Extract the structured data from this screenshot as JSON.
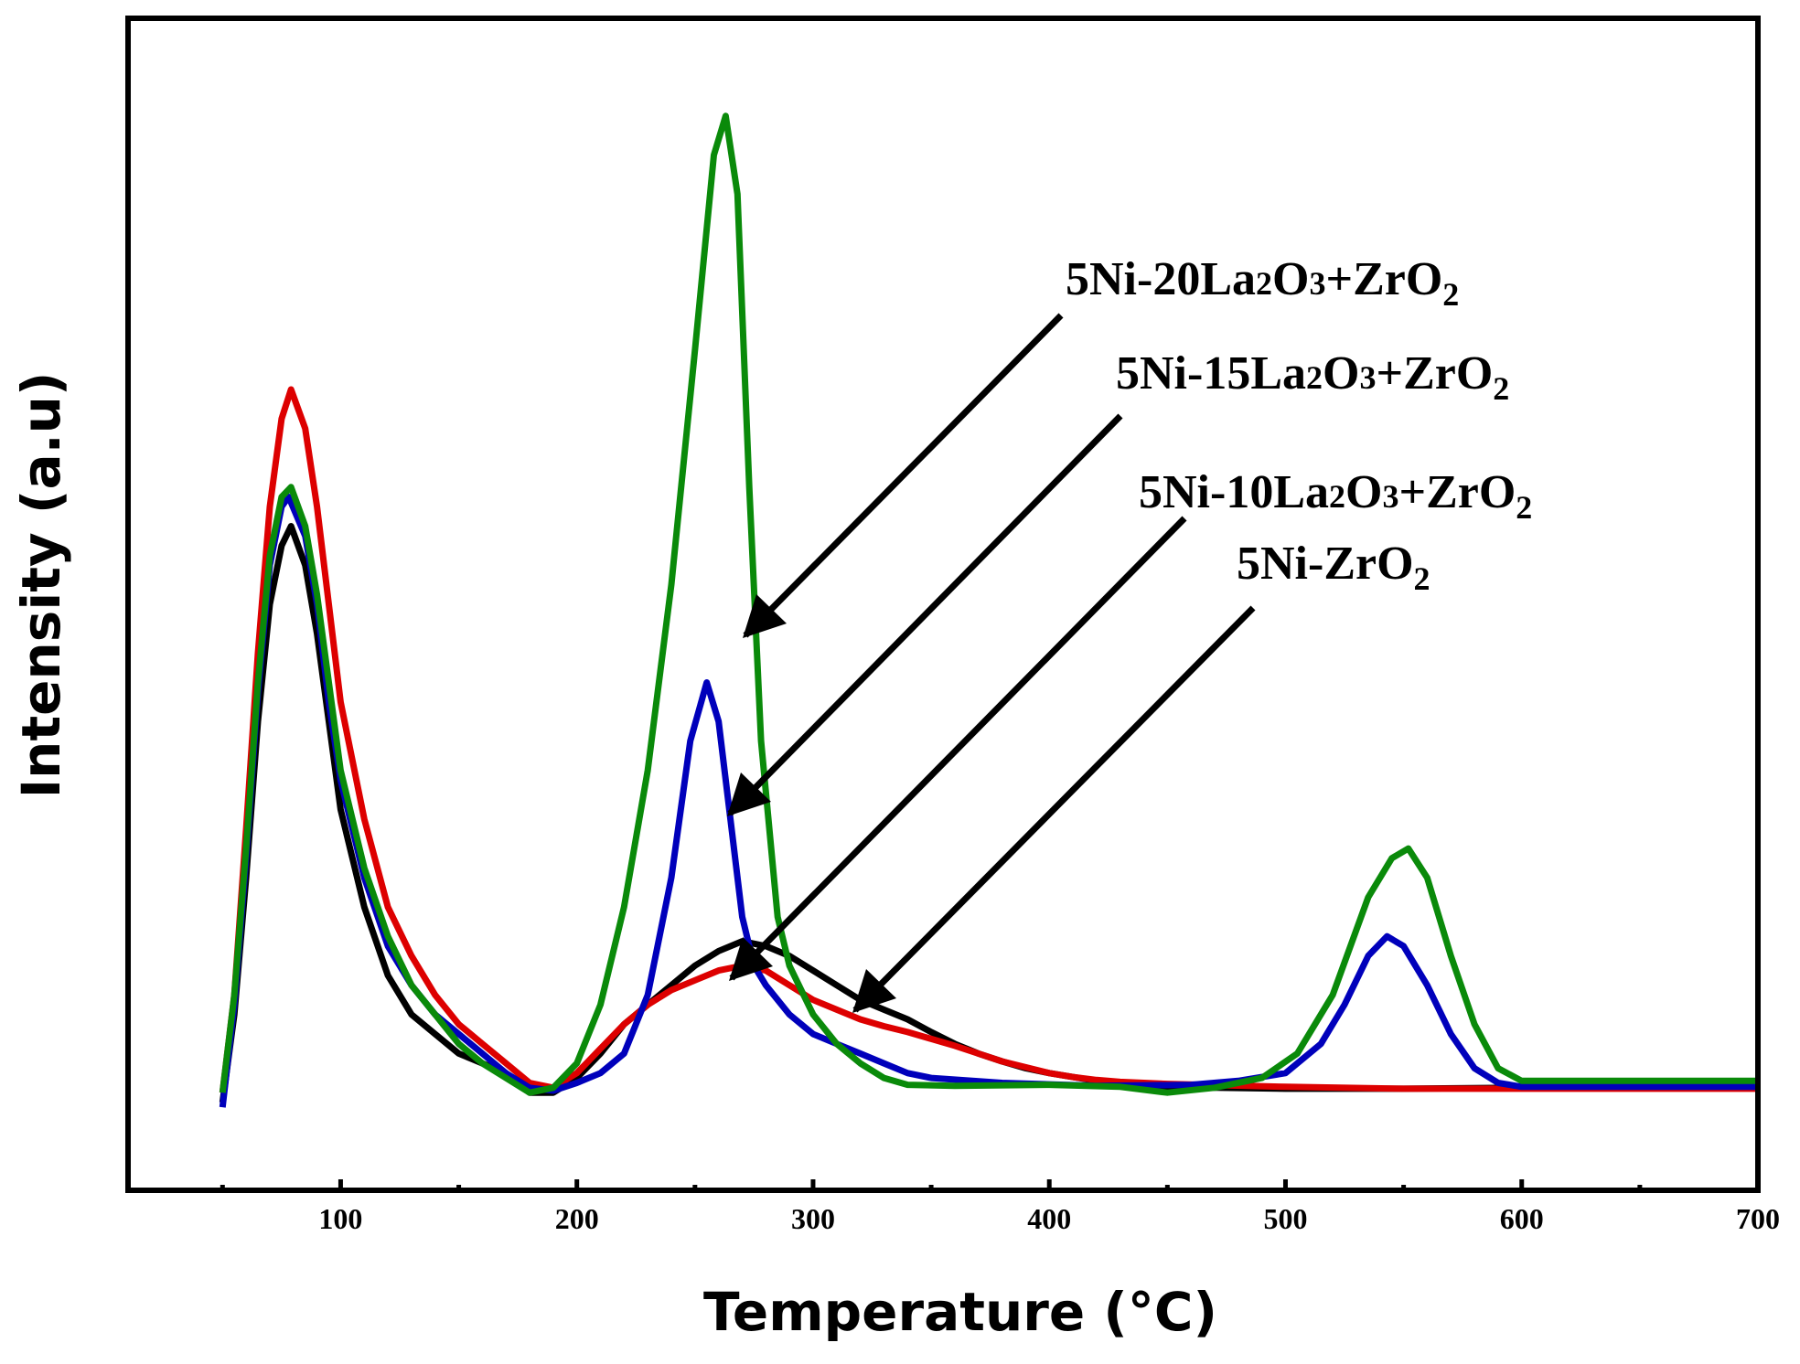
{
  "chart_data": {
    "type": "line",
    "title": "",
    "xlabel": "Temperature (°C)",
    "ylabel": "Intensity (a.u)",
    "xlim": [
      10,
      700
    ],
    "ylim": [
      -0.1,
      1.1
    ],
    "x_ticks": [
      100,
      200,
      300,
      400,
      500,
      600,
      700
    ],
    "x_tick_labels": [
      "100",
      "200",
      "300",
      "400",
      "500",
      "600",
      "700"
    ],
    "y_ticks_shown": false,
    "grid": false,
    "series": [
      {
        "name": "5Ni-ZrO2",
        "color": "#000000",
        "points": [
          [
            50,
            -0.01
          ],
          [
            55,
            0.08
          ],
          [
            60,
            0.22
          ],
          [
            65,
            0.38
          ],
          [
            70,
            0.5
          ],
          [
            75,
            0.56
          ],
          [
            79,
            0.58
          ],
          [
            85,
            0.54
          ],
          [
            90,
            0.47
          ],
          [
            95,
            0.38
          ],
          [
            100,
            0.29
          ],
          [
            110,
            0.19
          ],
          [
            120,
            0.12
          ],
          [
            130,
            0.08
          ],
          [
            140,
            0.06
          ],
          [
            150,
            0.04
          ],
          [
            160,
            0.03
          ],
          [
            170,
            0.02
          ],
          [
            180,
            0.0
          ],
          [
            190,
            0.0
          ],
          [
            200,
            0.015
          ],
          [
            210,
            0.04
          ],
          [
            220,
            0.07
          ],
          [
            230,
            0.09
          ],
          [
            240,
            0.11
          ],
          [
            250,
            0.13
          ],
          [
            260,
            0.145
          ],
          [
            270,
            0.155
          ],
          [
            280,
            0.15
          ],
          [
            290,
            0.14
          ],
          [
            300,
            0.125
          ],
          [
            310,
            0.11
          ],
          [
            320,
            0.095
          ],
          [
            330,
            0.085
          ],
          [
            340,
            0.075
          ],
          [
            350,
            0.062
          ],
          [
            360,
            0.05
          ],
          [
            370,
            0.04
          ],
          [
            380,
            0.032
          ],
          [
            390,
            0.025
          ],
          [
            400,
            0.02
          ],
          [
            410,
            0.016
          ],
          [
            420,
            0.012
          ],
          [
            430,
            0.01
          ],
          [
            440,
            0.008
          ],
          [
            450,
            0.006
          ],
          [
            470,
            0.005
          ],
          [
            500,
            0.004
          ],
          [
            550,
            0.004
          ],
          [
            600,
            0.005
          ],
          [
            650,
            0.005
          ],
          [
            700,
            0.005
          ]
        ]
      },
      {
        "name": "5Ni-10La2O3+ZrO2",
        "color": "#dd0000",
        "points": [
          [
            50,
            0.0
          ],
          [
            55,
            0.1
          ],
          [
            60,
            0.27
          ],
          [
            65,
            0.45
          ],
          [
            70,
            0.6
          ],
          [
            75,
            0.69
          ],
          [
            79,
            0.72
          ],
          [
            85,
            0.68
          ],
          [
            90,
            0.6
          ],
          [
            95,
            0.5
          ],
          [
            100,
            0.4
          ],
          [
            110,
            0.28
          ],
          [
            120,
            0.19
          ],
          [
            130,
            0.14
          ],
          [
            140,
            0.1
          ],
          [
            150,
            0.07
          ],
          [
            160,
            0.05
          ],
          [
            170,
            0.03
          ],
          [
            180,
            0.01
          ],
          [
            190,
            0.005
          ],
          [
            200,
            0.02
          ],
          [
            210,
            0.045
          ],
          [
            220,
            0.07
          ],
          [
            230,
            0.09
          ],
          [
            240,
            0.105
          ],
          [
            250,
            0.115
          ],
          [
            260,
            0.125
          ],
          [
            270,
            0.13
          ],
          [
            280,
            0.125
          ],
          [
            290,
            0.11
          ],
          [
            300,
            0.095
          ],
          [
            310,
            0.085
          ],
          [
            320,
            0.075
          ],
          [
            330,
            0.068
          ],
          [
            340,
            0.062
          ],
          [
            350,
            0.055
          ],
          [
            360,
            0.048
          ],
          [
            370,
            0.04
          ],
          [
            380,
            0.032
          ],
          [
            390,
            0.026
          ],
          [
            400,
            0.02
          ],
          [
            410,
            0.016
          ],
          [
            420,
            0.013
          ],
          [
            430,
            0.011
          ],
          [
            450,
            0.009
          ],
          [
            500,
            0.006
          ],
          [
            550,
            0.004
          ],
          [
            600,
            0.004
          ],
          [
            650,
            0.004
          ],
          [
            700,
            0.004
          ]
        ]
      },
      {
        "name": "5Ni-15La2O3+ZrO2",
        "color": "#0000bb",
        "points": [
          [
            50,
            -0.015
          ],
          [
            55,
            0.09
          ],
          [
            60,
            0.24
          ],
          [
            65,
            0.41
          ],
          [
            70,
            0.54
          ],
          [
            75,
            0.6
          ],
          [
            78,
            0.61
          ],
          [
            85,
            0.57
          ],
          [
            90,
            0.5
          ],
          [
            95,
            0.4
          ],
          [
            100,
            0.32
          ],
          [
            110,
            0.22
          ],
          [
            120,
            0.15
          ],
          [
            130,
            0.11
          ],
          [
            140,
            0.08
          ],
          [
            150,
            0.06
          ],
          [
            160,
            0.04
          ],
          [
            170,
            0.02
          ],
          [
            180,
            0.005
          ],
          [
            190,
            0.002
          ],
          [
            200,
            0.01
          ],
          [
            210,
            0.02
          ],
          [
            220,
            0.04
          ],
          [
            230,
            0.1
          ],
          [
            240,
            0.22
          ],
          [
            248,
            0.36
          ],
          [
            255,
            0.42
          ],
          [
            260,
            0.38
          ],
          [
            265,
            0.28
          ],
          [
            270,
            0.18
          ],
          [
            275,
            0.13
          ],
          [
            280,
            0.11
          ],
          [
            290,
            0.08
          ],
          [
            300,
            0.06
          ],
          [
            310,
            0.05
          ],
          [
            320,
            0.04
          ],
          [
            330,
            0.03
          ],
          [
            340,
            0.02
          ],
          [
            350,
            0.015
          ],
          [
            380,
            0.01
          ],
          [
            420,
            0.007
          ],
          [
            460,
            0.008
          ],
          [
            480,
            0.012
          ],
          [
            500,
            0.02
          ],
          [
            515,
            0.05
          ],
          [
            525,
            0.09
          ],
          [
            535,
            0.14
          ],
          [
            543,
            0.16
          ],
          [
            550,
            0.15
          ],
          [
            560,
            0.11
          ],
          [
            570,
            0.06
          ],
          [
            580,
            0.025
          ],
          [
            590,
            0.01
          ],
          [
            600,
            0.006
          ],
          [
            650,
            0.006
          ],
          [
            700,
            0.006
          ]
        ]
      },
      {
        "name": "5Ni-20La2O3+ZrO2",
        "color": "#0a8a0a",
        "points": [
          [
            50,
            0.0
          ],
          [
            55,
            0.1
          ],
          [
            60,
            0.25
          ],
          [
            65,
            0.42
          ],
          [
            70,
            0.55
          ],
          [
            75,
            0.61
          ],
          [
            79,
            0.62
          ],
          [
            85,
            0.58
          ],
          [
            90,
            0.51
          ],
          [
            95,
            0.42
          ],
          [
            100,
            0.33
          ],
          [
            110,
            0.23
          ],
          [
            120,
            0.16
          ],
          [
            130,
            0.11
          ],
          [
            140,
            0.08
          ],
          [
            150,
            0.05
          ],
          [
            160,
            0.03
          ],
          [
            170,
            0.015
          ],
          [
            180,
            0.0
          ],
          [
            190,
            0.005
          ],
          [
            200,
            0.03
          ],
          [
            210,
            0.09
          ],
          [
            220,
            0.19
          ],
          [
            230,
            0.33
          ],
          [
            240,
            0.52
          ],
          [
            250,
            0.76
          ],
          [
            258,
            0.96
          ],
          [
            263,
            1.0
          ],
          [
            268,
            0.92
          ],
          [
            273,
            0.62
          ],
          [
            278,
            0.36
          ],
          [
            285,
            0.18
          ],
          [
            290,
            0.13
          ],
          [
            300,
            0.08
          ],
          [
            310,
            0.05
          ],
          [
            320,
            0.03
          ],
          [
            330,
            0.015
          ],
          [
            340,
            0.008
          ],
          [
            360,
            0.007
          ],
          [
            400,
            0.008
          ],
          [
            430,
            0.006
          ],
          [
            450,
            0.0
          ],
          [
            470,
            0.005
          ],
          [
            490,
            0.015
          ],
          [
            505,
            0.04
          ],
          [
            520,
            0.1
          ],
          [
            535,
            0.2
          ],
          [
            545,
            0.24
          ],
          [
            552,
            0.25
          ],
          [
            560,
            0.22
          ],
          [
            570,
            0.14
          ],
          [
            580,
            0.07
          ],
          [
            590,
            0.025
          ],
          [
            600,
            0.012
          ],
          [
            650,
            0.012
          ],
          [
            700,
            0.012
          ]
        ]
      }
    ],
    "annotations": [
      {
        "id": "5Ni-20La2O3+ZrO2",
        "prefix": "5Ni-20La",
        "sub1": "2",
        "mid": "O",
        "sub2": "3",
        "suffix": "+ZrO",
        "sub3": "2"
      },
      {
        "id": "5Ni-15La2O3+ZrO2",
        "prefix": "5Ni-15La",
        "sub1": "2",
        "mid": "O",
        "sub2": "3",
        "suffix": "+ZrO",
        "sub3": "2"
      },
      {
        "id": "5Ni-10La2O3+ZrO2",
        "prefix": "5Ni-10La",
        "sub1": "2",
        "mid": "O",
        "sub2": "3",
        "suffix": "+ZrO",
        "sub3": "2"
      },
      {
        "id": "5Ni-ZrO2",
        "prefix": "5Ni-ZrO",
        "sub3": "2"
      }
    ]
  }
}
